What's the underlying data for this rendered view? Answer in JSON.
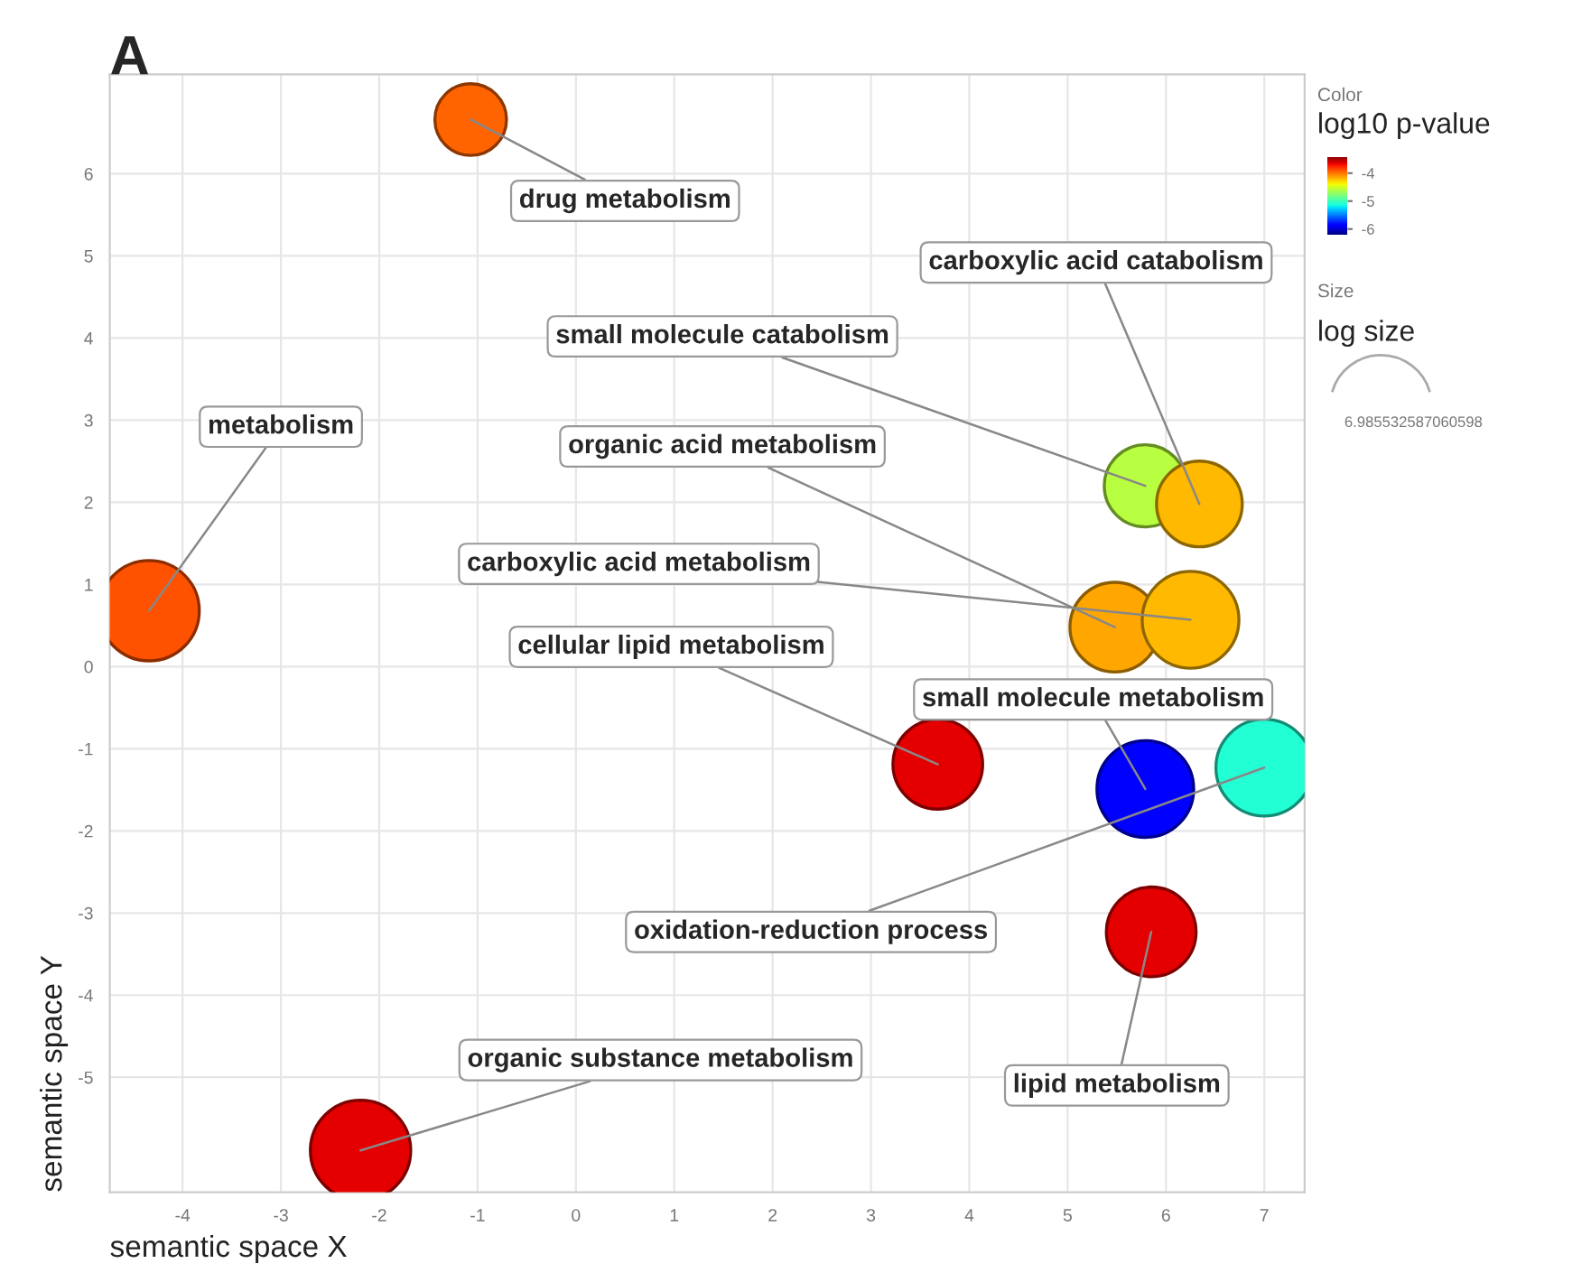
{
  "chart_data": {
    "type": "bubble",
    "title": "A",
    "xlabel": "semantic space X",
    "ylabel": "semantic space Y",
    "clabel": "log10 p-value",
    "x": [
      -1.07,
      -4.34,
      5.79,
      6.34,
      5.48,
      6.25,
      3.68,
      5.79,
      7.0,
      5.85,
      -2.19
    ],
    "values": [
      6.66,
      0.68,
      2.2,
      1.98,
      0.48,
      0.57,
      -1.19,
      -1.49,
      -1.23,
      -3.23,
      -5.89
    ],
    "sizes": [
      0.51,
      1,
      0.67,
      0.73,
      0.8,
      0.93,
      0.8,
      0.93,
      0.93,
      0.8,
      1
    ],
    "cvalues": [
      -3.95,
      -3.9,
      -4.6,
      -4.2,
      -4.15,
      -4.2,
      -3.65,
      -5.85,
      -5.1,
      -3.65,
      -3.65
    ],
    "clim": [
      -6.2,
      -3.4
    ],
    "cticks": [
      -6,
      -5,
      -4
    ],
    "xlim": [
      -4.74,
      7.41
    ],
    "ylim": [
      -6.4,
      7.21
    ],
    "xticks": [
      -4,
      -3,
      -2,
      -1,
      0,
      1,
      2,
      3,
      4,
      5,
      6,
      7
    ],
    "yticks": [
      -5,
      -4,
      -3,
      -2,
      -1,
      0,
      1,
      2,
      3,
      4,
      5,
      6
    ],
    "grid": true,
    "annotations": [
      {
        "text": "drug metabolism",
        "x": -1.07,
        "y": 6.66
      },
      {
        "text": "metabolism",
        "x": -4.34,
        "y": 0.68
      },
      {
        "text": "small molecule catabolism",
        "x": 5.79,
        "y": 2.2
      },
      {
        "text": "carboxylic acid catabolism",
        "x": 6.34,
        "y": 1.98
      },
      {
        "text": "organic acid metabolism",
        "x": 5.48,
        "y": 0.48
      },
      {
        "text": "carboxylic acid metabolism",
        "x": 6.25,
        "y": 0.57
      },
      {
        "text": "cellular lipid metabolism",
        "x": 3.68,
        "y": -1.19
      },
      {
        "text": "small molecule metabolism",
        "x": 5.79,
        "y": -1.49
      },
      {
        "text": "oxidation-reduction process",
        "x": 7.0,
        "y": -1.23
      },
      {
        "text": "lipid metabolism",
        "x": 5.85,
        "y": -3.23
      },
      {
        "text": "organic substance metabolism",
        "x": -2.19,
        "y": -5.89
      },
      "Color",
      "Size",
      "log size",
      "6.985532587060598"
    ]
  }
}
